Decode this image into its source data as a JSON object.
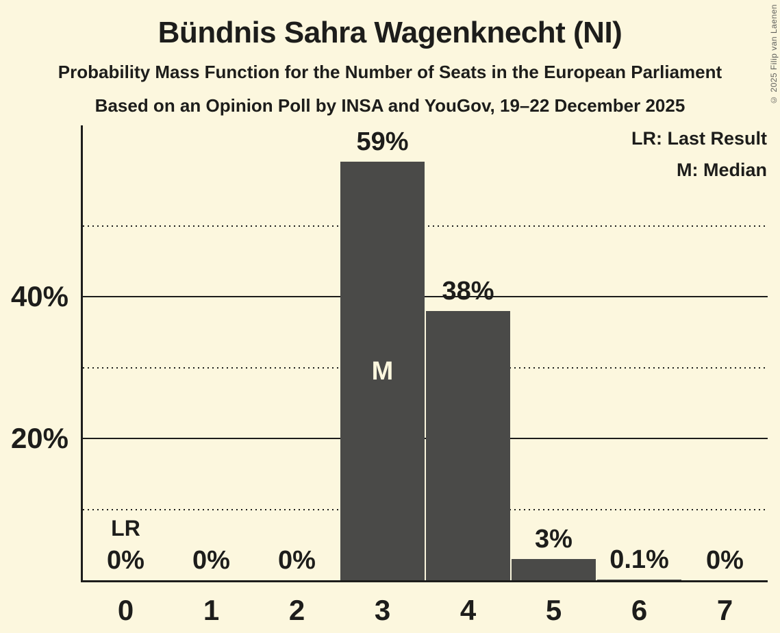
{
  "header": {
    "title": "Bündnis Sahra Wagenknecht (NI)",
    "subtitle": "Probability Mass Function for the Number of Seats in the European Parliament",
    "poll_line": "Based on an Opinion Poll by INSA and YouGov, 19–22 December 2025"
  },
  "copyright": "© 2025 Filip van Laenen",
  "legend": {
    "last_result": "LR: Last Result",
    "median": "M: Median"
  },
  "colors": {
    "background": "#FCF7DE",
    "bar": "#4A4A48",
    "text": "#1D1D1B",
    "median_label": "#FCF7DE",
    "copyright": "#5F5F5B"
  },
  "chart_data": {
    "type": "bar",
    "title": "Bündnis Sahra Wagenknecht (NI)",
    "subtitle": "Probability Mass Function for the Number of Seats in the European Parliament",
    "xlabel": "",
    "ylabel": "",
    "categories": [
      "0",
      "1",
      "2",
      "3",
      "4",
      "5",
      "6",
      "7"
    ],
    "values": [
      0,
      0,
      0,
      59,
      38,
      3,
      0.1,
      0
    ],
    "bar_labels": [
      "0%",
      "0%",
      "0%",
      "59%",
      "38%",
      "3%",
      "0.1%",
      "0%"
    ],
    "ylim": [
      0,
      64
    ],
    "grid": "horizontal",
    "y_gridlines": {
      "solid": [
        20,
        40
      ],
      "dotted": [
        10,
        30,
        50
      ]
    },
    "y_tick_labels": [
      {
        "value": 20,
        "label": "20%"
      },
      {
        "value": 40,
        "label": "40%"
      }
    ],
    "legend_position": "top-right",
    "annotations": {
      "last_result_seats": 0,
      "last_result_label": "LR",
      "median_seats": 3,
      "median_label": "M"
    }
  }
}
